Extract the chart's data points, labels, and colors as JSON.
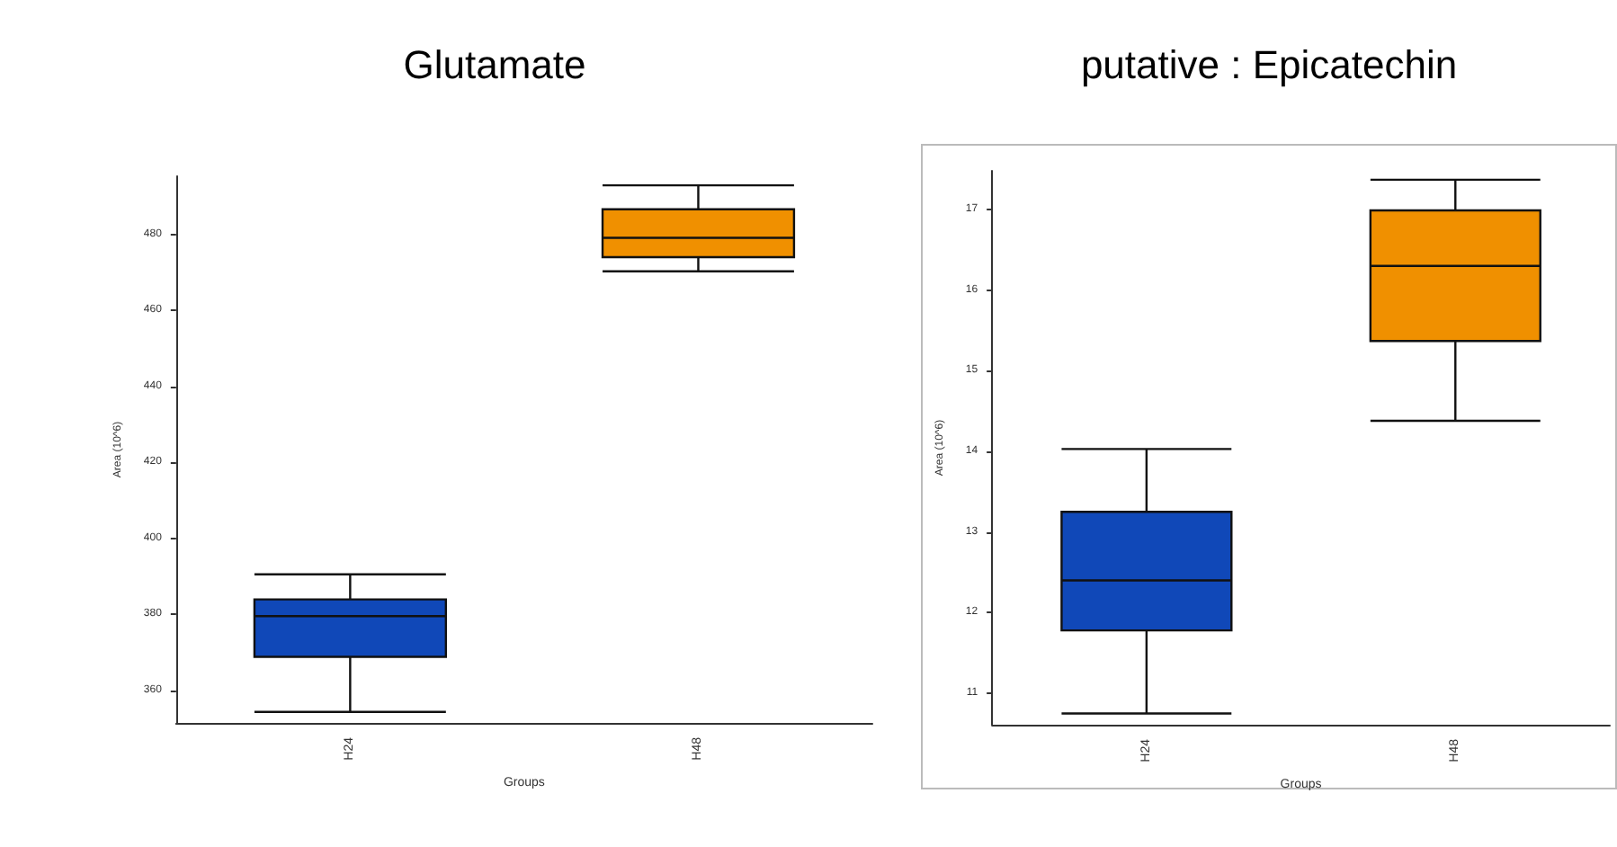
{
  "chart_data": [
    {
      "type": "box",
      "title": "Glutamate",
      "xlabel": "Groups",
      "ylabel": "Area (10^6)",
      "categories": [
        "H24",
        "H48"
      ],
      "boxes": [
        {
          "low": 354.4,
          "q1": 368.9,
          "median": 379.6,
          "q3": 384,
          "high": 390.6
        },
        {
          "low": 470.3,
          "q1": 474,
          "median": 479.1,
          "q3": 486.6,
          "high": 492.9
        }
      ],
      "colors": [
        "#1048b8",
        "#f09000"
      ],
      "ylim": [
        351.5,
        495.3
      ],
      "yticks": [
        360,
        380,
        400,
        420,
        440,
        460,
        480
      ],
      "grid": false
    },
    {
      "type": "box",
      "title": "putative : Epicatechin",
      "xlabel": "Groups",
      "ylabel": "Area (10^6)",
      "categories": [
        "H24",
        "H48"
      ],
      "boxes": [
        {
          "low": 10.75,
          "q1": 11.78,
          "median": 12.4,
          "q3": 13.25,
          "high": 14.03
        },
        {
          "low": 14.38,
          "q1": 15.37,
          "median": 16.3,
          "q3": 16.99,
          "high": 17.37
        }
      ],
      "colors": [
        "#1048b8",
        "#f09000"
      ],
      "ylim": [
        10.61,
        17.48
      ],
      "yticks": [
        11,
        12,
        13,
        14,
        15,
        16,
        17
      ],
      "grid": false
    }
  ]
}
